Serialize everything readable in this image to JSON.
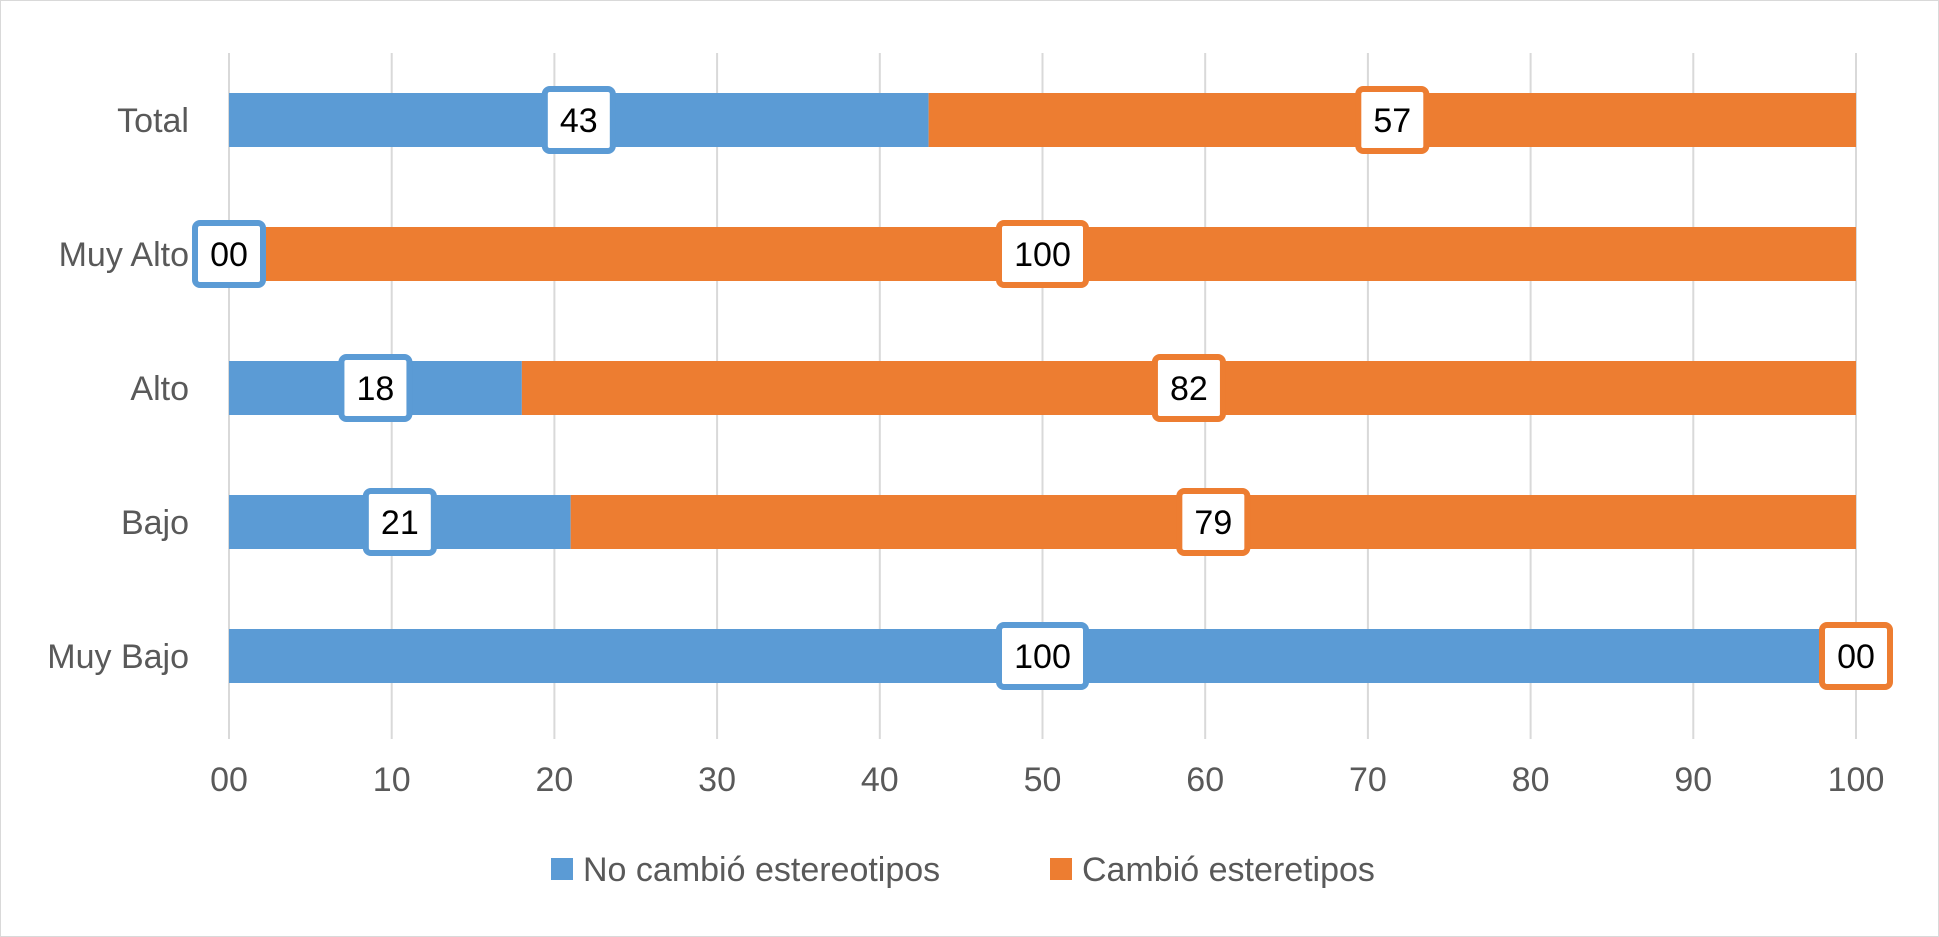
{
  "chart_data": {
    "type": "bar",
    "orientation": "horizontal",
    "stacked": true,
    "categories": [
      "Total",
      "Muy Alto",
      "Alto",
      "Bajo",
      "Muy Bajo"
    ],
    "series": [
      {
        "name": "No cambió estereotipos",
        "color": "#5b9bd5",
        "values": [
          43,
          0,
          18,
          21,
          100
        ],
        "labels": [
          "43",
          "00",
          "18",
          "21",
          "100"
        ]
      },
      {
        "name": "Cambió esteretipos",
        "color": "#ed7d31",
        "values": [
          57,
          100,
          82,
          79,
          0
        ],
        "labels": [
          "57",
          "100",
          "82",
          "79",
          "00"
        ]
      }
    ],
    "xlim": [
      0,
      100
    ],
    "xticks": [
      0,
      10,
      20,
      30,
      40,
      50,
      60,
      70,
      80,
      90,
      100
    ],
    "xtick_labels": [
      "00",
      "10",
      "20",
      "30",
      "40",
      "50",
      "60",
      "70",
      "80",
      "90",
      "100"
    ],
    "grid": true,
    "legend_position": "bottom",
    "title": "",
    "xlabel": "",
    "ylabel": ""
  }
}
